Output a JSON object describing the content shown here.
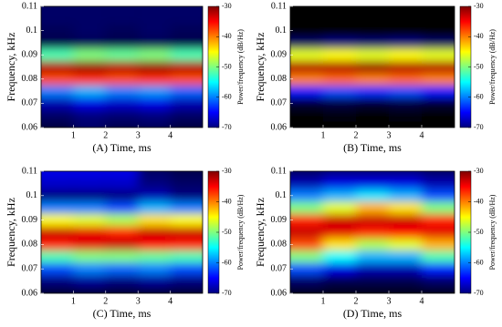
{
  "chart_data": [
    {
      "type": "heatmap",
      "xlabel": "(A) Time, ms",
      "ylabel": "Frequency, kHz",
      "colorbar_label": "Power/frequency (dB/Hz)",
      "x": [
        0.5,
        1.5,
        2.5,
        3.5,
        4.5
      ],
      "y": [
        0.06,
        0.065,
        0.07,
        0.075,
        0.08,
        0.085,
        0.09,
        0.095,
        0.1,
        0.105,
        0.11
      ],
      "z": [
        [
          -75,
          -72,
          -74,
          -73,
          -75
        ],
        [
          -72,
          -70,
          -71,
          -70,
          -72
        ],
        [
          -68,
          -66,
          -67,
          -66,
          -68
        ],
        [
          -60,
          -58,
          -60,
          -59,
          -61
        ],
        [
          -38,
          -37,
          -38,
          -37,
          -38
        ],
        [
          -32,
          -31,
          -32,
          -31,
          -32
        ],
        [
          -52,
          -50,
          -51,
          -50,
          -52
        ],
        [
          -74,
          -73,
          -74,
          -73,
          -74
        ],
        [
          -73,
          -72,
          -73,
          -72,
          -73
        ],
        [
          -72,
          -72,
          -72,
          -72,
          -72
        ],
        [
          -72,
          -72,
          -72,
          -72,
          -72
        ]
      ],
      "xlim": [
        0,
        5
      ],
      "xticks": [
        1,
        2,
        3,
        4
      ],
      "ylim": [
        0.06,
        0.11
      ],
      "yticks": [
        0.06,
        0.07,
        0.08,
        0.09,
        0.1,
        0.11
      ],
      "zlim": [
        -70,
        -30
      ],
      "zticks": [
        -30,
        -40,
        -50,
        -60,
        -70
      ]
    },
    {
      "type": "heatmap",
      "xlabel": "(B) Time, ms",
      "ylabel": "Frequency, kHz",
      "colorbar_label": "Power/frequency (dB/Hz)",
      "x": [
        0.5,
        1.5,
        2.5,
        3.5,
        4.5
      ],
      "y": [
        0.06,
        0.065,
        0.07,
        0.075,
        0.08,
        0.085,
        0.09,
        0.095,
        0.1,
        0.105,
        0.11
      ],
      "z": [
        [
          -80,
          -80,
          -80,
          -80,
          -80
        ],
        [
          -80,
          -79,
          -80,
          -79,
          -80
        ],
        [
          -76,
          -75,
          -76,
          -75,
          -76
        ],
        [
          -64,
          -62,
          -63,
          -62,
          -64
        ],
        [
          -40,
          -39,
          -40,
          -39,
          -40
        ],
        [
          -32,
          -32,
          -31,
          -32,
          -32
        ],
        [
          -46,
          -45,
          -46,
          -45,
          -46
        ],
        [
          -72,
          -70,
          -71,
          -70,
          -72
        ],
        [
          -80,
          -80,
          -80,
          -80,
          -80
        ],
        [
          -80,
          -80,
          -80,
          -80,
          -80
        ],
        [
          -80,
          -80,
          -80,
          -80,
          -80
        ]
      ],
      "xlim": [
        0,
        5
      ],
      "xticks": [
        1,
        2,
        3,
        4
      ],
      "ylim": [
        0.06,
        0.11
      ],
      "yticks": [
        0.06,
        0.07,
        0.08,
        0.09,
        0.1,
        0.11
      ],
      "zlim": [
        -70,
        -30
      ],
      "zticks": [
        -30,
        -40,
        -50,
        -60,
        -70
      ]
    },
    {
      "type": "heatmap",
      "xlabel": "(C) Time, ms",
      "ylabel": "Frequency, kHz",
      "colorbar_label": "Power/frequency (dB/Hz)",
      "x": [
        0.5,
        1.5,
        2.5,
        3.5,
        4.5
      ],
      "y": [
        0.06,
        0.065,
        0.07,
        0.075,
        0.08,
        0.085,
        0.09,
        0.095,
        0.1,
        0.105,
        0.11
      ],
      "z": [
        [
          -76,
          -76,
          -76,
          -76,
          -76
        ],
        [
          -70,
          -69,
          -70,
          -69,
          -70
        ],
        [
          -62,
          -60,
          -61,
          -60,
          -62
        ],
        [
          -52,
          -50,
          -50,
          -51,
          -52
        ],
        [
          -36,
          -34,
          -33,
          -35,
          -36
        ],
        [
          -33,
          -34,
          -36,
          -33,
          -33
        ],
        [
          -45,
          -46,
          -48,
          -44,
          -45
        ],
        [
          -60,
          -60,
          -62,
          -58,
          -60
        ],
        [
          -70,
          -70,
          -70,
          -68,
          -70
        ],
        [
          -67,
          -67,
          -67,
          -70,
          -72
        ],
        [
          -66,
          -66,
          -66,
          -72,
          -74
        ]
      ],
      "xlim": [
        0,
        5
      ],
      "xticks": [
        1,
        2,
        3,
        4
      ],
      "ylim": [
        0.06,
        0.11
      ],
      "yticks": [
        0.06,
        0.07,
        0.08,
        0.09,
        0.1,
        0.11
      ],
      "zlim": [
        -70,
        -30
      ],
      "zticks": [
        -30,
        -40,
        -50,
        -60,
        -70
      ]
    },
    {
      "type": "heatmap",
      "xlabel": "(D) Time, ms",
      "ylabel": "Frequency, kHz",
      "colorbar_label": "Power/frequency (dB/Hz)",
      "x": [
        0.5,
        1.5,
        2.5,
        3.5,
        4.5
      ],
      "y": [
        0.06,
        0.065,
        0.07,
        0.075,
        0.08,
        0.085,
        0.09,
        0.095,
        0.1,
        0.105,
        0.11
      ],
      "z": [
        [
          -78,
          -78,
          -78,
          -78,
          -78
        ],
        [
          -72,
          -74,
          -74,
          -74,
          -72
        ],
        [
          -62,
          -66,
          -68,
          -68,
          -64
        ],
        [
          -50,
          -55,
          -58,
          -58,
          -52
        ],
        [
          -38,
          -44,
          -48,
          -46,
          -42
        ],
        [
          -33,
          -34,
          -36,
          -35,
          -34
        ],
        [
          -36,
          -33,
          -33,
          -33,
          -36
        ],
        [
          -50,
          -46,
          -42,
          -44,
          -50
        ],
        [
          -60,
          -58,
          -56,
          -58,
          -62
        ],
        [
          -68,
          -66,
          -66,
          -66,
          -68
        ],
        [
          -72,
          -70,
          -70,
          -70,
          -72
        ]
      ],
      "xlim": [
        0,
        5
      ],
      "xticks": [
        1,
        2,
        3,
        4
      ],
      "ylim": [
        0.06,
        0.11
      ],
      "yticks": [
        0.06,
        0.07,
        0.08,
        0.09,
        0.1,
        0.11
      ],
      "zlim": [
        -70,
        -30
      ],
      "zticks": [
        -30,
        -40,
        -50,
        -60,
        -70
      ]
    }
  ]
}
